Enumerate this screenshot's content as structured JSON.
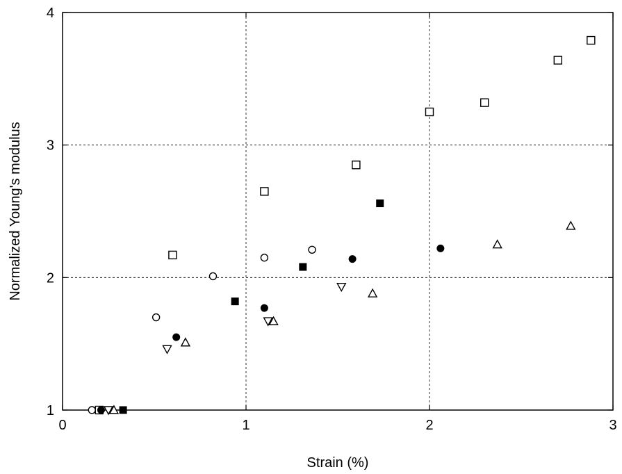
{
  "chart_data": {
    "type": "scatter",
    "title": "",
    "xlabel": "Strain (%)",
    "ylabel": "Normalized Young's modulus",
    "xlim": [
      0,
      3
    ],
    "ylim": [
      1,
      4
    ],
    "xticks": [
      "0",
      "1",
      "2",
      "3"
    ],
    "yticks": [
      "1",
      "2",
      "3",
      "4"
    ],
    "grid": "dashed, internal ticks only",
    "legend": "none",
    "series": [
      {
        "marker": "open-square",
        "points": [
          [
            0.2,
            1.0
          ],
          [
            0.6,
            2.17
          ],
          [
            1.1,
            2.65
          ],
          [
            1.6,
            2.85
          ],
          [
            2.0,
            3.25
          ],
          [
            2.3,
            3.32
          ],
          [
            2.7,
            3.64
          ],
          [
            2.88,
            3.79
          ]
        ]
      },
      {
        "marker": "filled-square",
        "points": [
          [
            0.33,
            1.0
          ],
          [
            0.94,
            1.82
          ],
          [
            1.31,
            2.08
          ],
          [
            1.73,
            2.56
          ]
        ]
      },
      {
        "marker": "open-circle",
        "points": [
          [
            0.16,
            1.0
          ],
          [
            0.51,
            1.7
          ],
          [
            0.82,
            2.01
          ],
          [
            1.1,
            2.15
          ],
          [
            1.36,
            2.21
          ]
        ]
      },
      {
        "marker": "filled-circle",
        "points": [
          [
            0.21,
            1.0
          ],
          [
            0.62,
            1.55
          ],
          [
            1.1,
            1.77
          ],
          [
            1.58,
            2.14
          ],
          [
            2.06,
            2.22
          ]
        ]
      },
      {
        "marker": "open-triangle-down",
        "points": [
          [
            0.25,
            1.0
          ],
          [
            0.57,
            1.46
          ],
          [
            1.12,
            1.67
          ],
          [
            1.52,
            1.93
          ]
        ]
      },
      {
        "marker": "open-triangle-up",
        "points": [
          [
            0.28,
            1.0
          ],
          [
            0.67,
            1.51
          ],
          [
            1.15,
            1.67
          ],
          [
            1.69,
            1.88
          ],
          [
            2.37,
            2.25
          ],
          [
            2.77,
            2.39
          ]
        ]
      }
    ]
  }
}
